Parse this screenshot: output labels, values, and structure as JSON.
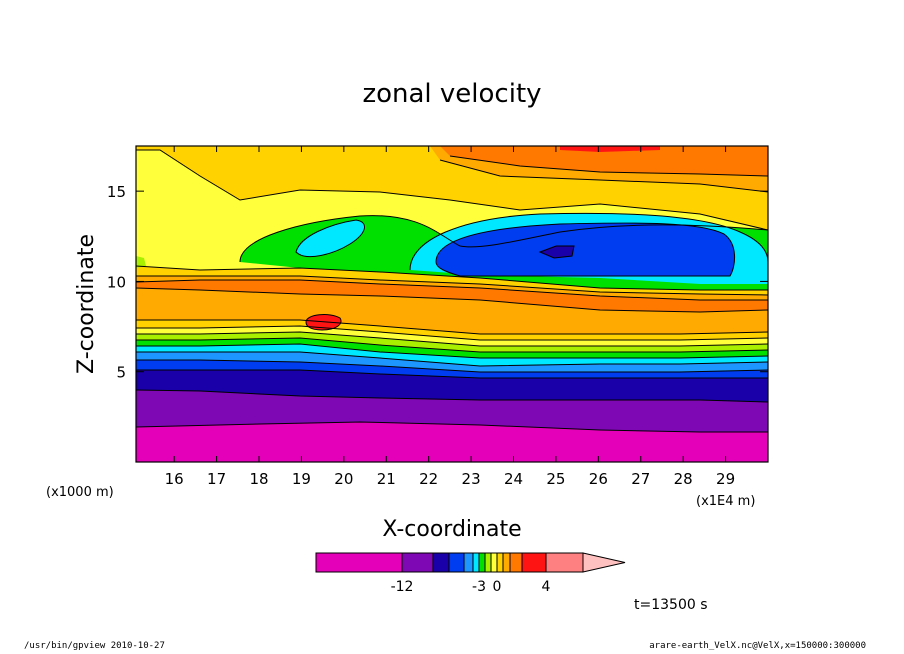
{
  "chart_data": {
    "type": "heatmap",
    "title": "zonal velocity",
    "xlabel": "X-coordinate",
    "ylabel": "Z-coordinate",
    "x_unit_left": "(x1000 m)",
    "x_unit_right": "(x1E4 m)",
    "xlim": [
      15.1,
      30.0
    ],
    "ylim": [
      0,
      17.5
    ],
    "x_ticks": [
      16,
      17,
      18,
      19,
      20,
      21,
      22,
      23,
      24,
      25,
      26,
      27,
      28,
      29
    ],
    "x_tick_labels": [
      "16",
      "17",
      "18",
      "19",
      "20",
      "21",
      "22",
      "23",
      "24",
      "25",
      "26",
      "27",
      "28",
      "29"
    ],
    "y_ticks": [
      5,
      10,
      15
    ],
    "y_tick_labels": [
      "5",
      "10",
      "15"
    ],
    "time_label": "t=13500 s",
    "contour_levels": [
      -18,
      -12,
      -9,
      -6,
      -5,
      -4,
      -3,
      -2,
      -1,
      0,
      1,
      2,
      3,
      4,
      6,
      9
    ],
    "colorbar": {
      "tick_labels": [
        "-12",
        "-3",
        "0",
        "4"
      ],
      "tick_values": [
        -12,
        -3,
        0,
        4
      ],
      "colors": [
        "#e400b8",
        "#7e09b4",
        "#1a00a8",
        "#003cf0",
        "#1e96ff",
        "#00e8ff",
        "#00e000",
        "#a8f000",
        "#ffff3c",
        "#ffd200",
        "#ffaa00",
        "#ff7800",
        "#ff1414",
        "#ff8080",
        "#ffc0c0"
      ]
    }
  },
  "footer": {
    "left": "/usr/bin/gpview   2010-10-27",
    "right": "arare-earth_VelX.nc@VelX,x=150000:300000"
  }
}
